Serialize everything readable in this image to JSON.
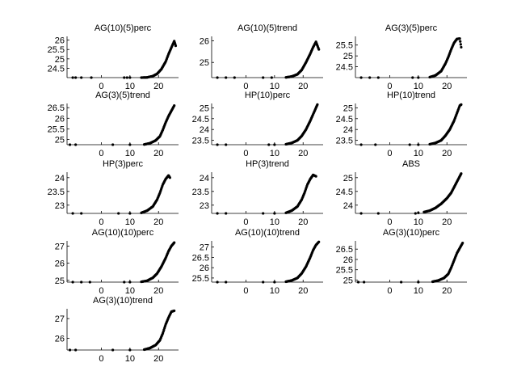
{
  "chart_data": [
    {
      "type": "scatter",
      "title": "AG(10)(5)perc",
      "xticks": [
        "0",
        "10",
        "20"
      ],
      "yticks": [
        "24.5",
        "25",
        "25.5",
        "26"
      ],
      "xlim": [
        -12,
        27
      ],
      "ylim": [
        24,
        26.2
      ],
      "points": [
        [
          -10,
          24
        ],
        [
          -9,
          24
        ],
        [
          -7,
          24
        ],
        [
          -3.5,
          24
        ],
        [
          8,
          24
        ],
        [
          9,
          24
        ],
        [
          10,
          24
        ],
        [
          14,
          24
        ],
        [
          16,
          24.01
        ],
        [
          18,
          24.08
        ],
        [
          19.5,
          24.2
        ],
        [
          21,
          24.45
        ],
        [
          22.5,
          24.85
        ],
        [
          23.5,
          25.25
        ],
        [
          24.5,
          25.6
        ],
        [
          25.5,
          25.95
        ],
        [
          26,
          25.7
        ]
      ]
    },
    {
      "type": "scatter",
      "title": "AG(10)(5)trend",
      "xticks": [
        "0",
        "10",
        "20"
      ],
      "yticks": [
        "25",
        "26"
      ],
      "xlim": [
        -12,
        27
      ],
      "ylim": [
        24.3,
        26.2
      ],
      "points": [
        [
          -10,
          24.3
        ],
        [
          -7,
          24.3
        ],
        [
          -4,
          24.3
        ],
        [
          6,
          24.3
        ],
        [
          9,
          24.3
        ],
        [
          14,
          24.31
        ],
        [
          16,
          24.35
        ],
        [
          18,
          24.45
        ],
        [
          19.5,
          24.65
        ],
        [
          21,
          25
        ],
        [
          22.5,
          25.4
        ],
        [
          23.5,
          25.7
        ],
        [
          24.5,
          25.95
        ],
        [
          25.5,
          25.6
        ]
      ]
    },
    {
      "type": "scatter",
      "title": "AG(3)(5)perc",
      "xticks": [
        "0",
        "10",
        "20"
      ],
      "yticks": [
        "24.5",
        "25",
        "25.5"
      ],
      "xlim": [
        -12,
        27
      ],
      "ylim": [
        24,
        25.9
      ],
      "points": [
        [
          -10,
          24
        ],
        [
          -7,
          24
        ],
        [
          -4,
          24
        ],
        [
          8,
          24
        ],
        [
          10,
          24
        ],
        [
          14,
          24.02
        ],
        [
          16,
          24.1
        ],
        [
          18,
          24.3
        ],
        [
          19.5,
          24.65
        ],
        [
          20.5,
          24.95
        ],
        [
          21.5,
          25.3
        ],
        [
          22.5,
          25.6
        ],
        [
          23.5,
          25.78
        ],
        [
          24.5,
          25.8
        ],
        [
          25,
          25.4
        ]
      ]
    },
    {
      "type": "scatter",
      "title": "AG(3)(5)trend",
      "xticks": [
        "0",
        "10",
        "20"
      ],
      "yticks": [
        "25",
        "25.5",
        "26",
        "26.5"
      ],
      "xlim": [
        -12,
        27
      ],
      "ylim": [
        24.75,
        26.7
      ],
      "points": [
        [
          -11,
          24.75
        ],
        [
          -9,
          24.75
        ],
        [
          4,
          24.75
        ],
        [
          10,
          24.75
        ],
        [
          15,
          24.76
        ],
        [
          17,
          24.82
        ],
        [
          19,
          24.95
        ],
        [
          20.5,
          25.15
        ],
        [
          21.5,
          25.45
        ],
        [
          22.5,
          25.8
        ],
        [
          23.5,
          26.1
        ],
        [
          24.5,
          26.35
        ],
        [
          25.5,
          26.6
        ]
      ]
    },
    {
      "type": "scatter",
      "title": "HP(10)perc",
      "xticks": [
        "0",
        "10",
        "20"
      ],
      "yticks": [
        "23.5",
        "24",
        "24.5",
        "25"
      ],
      "xlim": [
        -12,
        27
      ],
      "ylim": [
        23.3,
        25.2
      ],
      "points": [
        [
          -10,
          23.3
        ],
        [
          -7,
          23.3
        ],
        [
          8,
          23.3
        ],
        [
          10,
          23.3
        ],
        [
          14,
          23.32
        ],
        [
          16,
          23.38
        ],
        [
          18,
          23.5
        ],
        [
          19.5,
          23.7
        ],
        [
          21,
          24
        ],
        [
          22.5,
          24.4
        ],
        [
          23.5,
          24.7
        ],
        [
          24.5,
          25
        ],
        [
          25,
          25.15
        ]
      ]
    },
    {
      "type": "scatter",
      "title": "HP(10)trend",
      "xticks": [
        "0",
        "10",
        "20"
      ],
      "yticks": [
        "23.5",
        "24",
        "24.5",
        "25"
      ],
      "xlim": [
        -12,
        27
      ],
      "ylim": [
        23.3,
        25.2
      ],
      "points": [
        [
          -10,
          23.3
        ],
        [
          -5,
          23.3
        ],
        [
          7,
          23.3
        ],
        [
          10,
          23.3
        ],
        [
          14,
          23.32
        ],
        [
          16,
          23.38
        ],
        [
          18,
          23.5
        ],
        [
          19.5,
          23.72
        ],
        [
          21,
          24
        ],
        [
          22.5,
          24.4
        ],
        [
          23.5,
          24.75
        ],
        [
          24.5,
          25.1
        ],
        [
          25,
          25.15
        ]
      ]
    },
    {
      "type": "scatter",
      "title": "HP(3)perc",
      "xticks": [
        "0",
        "10",
        "20"
      ],
      "yticks": [
        "23",
        "23.5",
        "24"
      ],
      "xlim": [
        -12,
        27
      ],
      "ylim": [
        22.7,
        24.2
      ],
      "points": [
        [
          -10,
          22.7
        ],
        [
          -7,
          22.7
        ],
        [
          6,
          22.7
        ],
        [
          10,
          22.7
        ],
        [
          14,
          22.72
        ],
        [
          16,
          22.8
        ],
        [
          18,
          22.95
        ],
        [
          19.5,
          23.2
        ],
        [
          20.5,
          23.45
        ],
        [
          21.5,
          23.75
        ],
        [
          22.5,
          23.95
        ],
        [
          23.5,
          24.08
        ],
        [
          24,
          24
        ]
      ]
    },
    {
      "type": "scatter",
      "title": "HP(3)trend",
      "xticks": [
        "0",
        "10",
        "20"
      ],
      "yticks": [
        "23",
        "23.5",
        "24"
      ],
      "xlim": [
        -12,
        27
      ],
      "ylim": [
        22.7,
        24.2
      ],
      "points": [
        [
          -10,
          22.7
        ],
        [
          -7,
          22.7
        ],
        [
          6,
          22.7
        ],
        [
          10,
          22.7
        ],
        [
          14,
          22.72
        ],
        [
          16,
          22.8
        ],
        [
          18,
          22.95
        ],
        [
          19.5,
          23.2
        ],
        [
          20.5,
          23.45
        ],
        [
          21.5,
          23.75
        ],
        [
          22.5,
          23.95
        ],
        [
          23.5,
          24.1
        ],
        [
          24.5,
          24.05
        ]
      ]
    },
    {
      "type": "scatter",
      "title": "ABS",
      "xticks": [
        "0",
        "10",
        "20"
      ],
      "yticks": [
        "24",
        "24.5",
        "25"
      ],
      "xlim": [
        -12,
        27
      ],
      "ylim": [
        23.7,
        25.2
      ],
      "points": [
        [
          -10,
          23.7
        ],
        [
          -4,
          23.7
        ],
        [
          9,
          23.7
        ],
        [
          10,
          23.72
        ],
        [
          12,
          23.75
        ],
        [
          14,
          23.8
        ],
        [
          16,
          23.9
        ],
        [
          18,
          24.05
        ],
        [
          20,
          24.25
        ],
        [
          21.5,
          24.45
        ],
        [
          22.5,
          24.65
        ],
        [
          23.5,
          24.85
        ],
        [
          24.5,
          25.05
        ],
        [
          25,
          25.15
        ]
      ]
    },
    {
      "type": "scatter",
      "title": "AG(10)(10)perc",
      "xticks": [
        "0",
        "10",
        "20"
      ],
      "yticks": [
        "25",
        "26",
        "27"
      ],
      "xlim": [
        -12,
        27
      ],
      "ylim": [
        24.9,
        27.3
      ],
      "points": [
        [
          -10,
          24.9
        ],
        [
          -7,
          24.9
        ],
        [
          -4,
          24.9
        ],
        [
          8,
          24.9
        ],
        [
          10,
          24.9
        ],
        [
          14,
          24.92
        ],
        [
          16,
          24.98
        ],
        [
          18,
          25.15
        ],
        [
          19.5,
          25.4
        ],
        [
          21,
          25.8
        ],
        [
          22.5,
          26.3
        ],
        [
          23.5,
          26.7
        ],
        [
          24.5,
          27
        ],
        [
          25.5,
          27.2
        ]
      ]
    },
    {
      "type": "scatter",
      "title": "AG(10)(10)trend",
      "xticks": [
        "0",
        "10",
        "20"
      ],
      "yticks": [
        "25.5",
        "26",
        "26.5",
        "27"
      ],
      "xlim": [
        -12,
        27
      ],
      "ylim": [
        25.3,
        27.3
      ],
      "points": [
        [
          -10,
          25.3
        ],
        [
          -7,
          25.3
        ],
        [
          6,
          25.3
        ],
        [
          10,
          25.3
        ],
        [
          14,
          25.32
        ],
        [
          16,
          25.38
        ],
        [
          18,
          25.5
        ],
        [
          19.5,
          25.72
        ],
        [
          21,
          26.05
        ],
        [
          22.5,
          26.5
        ],
        [
          23.5,
          26.85
        ],
        [
          24.5,
          27.1
        ],
        [
          25.5,
          27.25
        ]
      ]
    },
    {
      "type": "scatter",
      "title": "AG(3)(10)perc",
      "xticks": [
        "0",
        "10",
        "20"
      ],
      "yticks": [
        "25",
        "25.5",
        "26",
        "26.5"
      ],
      "xlim": [
        -12,
        27
      ],
      "ylim": [
        24.9,
        26.9
      ],
      "points": [
        [
          -11,
          24.9
        ],
        [
          -9,
          24.9
        ],
        [
          4,
          24.9
        ],
        [
          10,
          24.9
        ],
        [
          15,
          24.92
        ],
        [
          17,
          24.98
        ],
        [
          19,
          25.1
        ],
        [
          20.5,
          25.3
        ],
        [
          21.5,
          25.6
        ],
        [
          22.5,
          25.95
        ],
        [
          23.5,
          26.3
        ],
        [
          24.5,
          26.55
        ],
        [
          25.5,
          26.8
        ]
      ]
    },
    {
      "type": "scatter",
      "title": "AG(3)(10)trend",
      "xticks": [
        "0",
        "10",
        "20"
      ],
      "yticks": [
        "26",
        "27"
      ],
      "xlim": [
        -12,
        27
      ],
      "ylim": [
        25.4,
        27.5
      ],
      "points": [
        [
          -11,
          25.4
        ],
        [
          -9,
          25.4
        ],
        [
          4,
          25.4
        ],
        [
          10,
          25.4
        ],
        [
          15,
          25.42
        ],
        [
          17,
          25.5
        ],
        [
          19,
          25.65
        ],
        [
          20.5,
          25.9
        ],
        [
          21.5,
          26.25
        ],
        [
          22.5,
          26.7
        ],
        [
          23.5,
          27.05
        ],
        [
          24.5,
          27.35
        ],
        [
          25.5,
          27.4
        ]
      ]
    }
  ]
}
